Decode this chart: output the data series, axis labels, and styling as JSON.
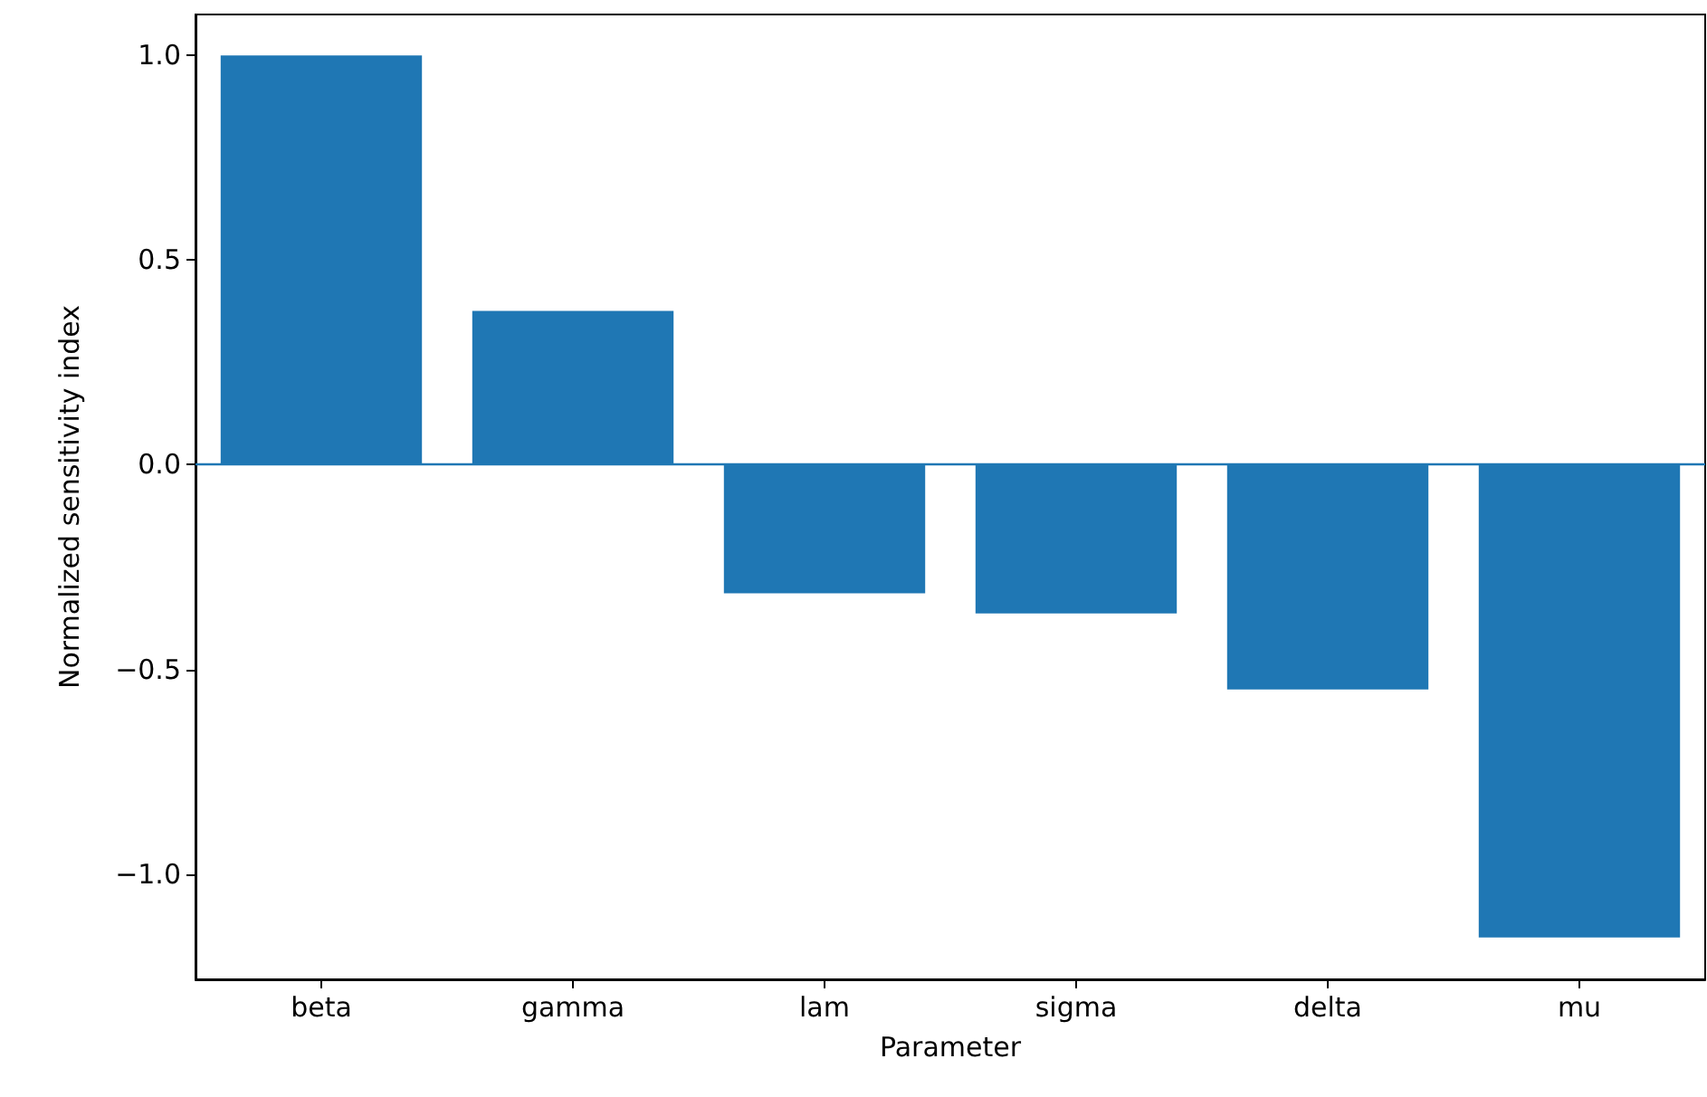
{
  "chart_data": {
    "type": "bar",
    "xlabel": "Parameter",
    "ylabel": "Normalized sensitivity index",
    "categories": [
      "beta",
      "gamma",
      "lam",
      "sigma",
      "delta",
      "mu"
    ],
    "values": [
      1.0,
      0.376,
      -0.314,
      -0.363,
      -0.549,
      -1.155
    ],
    "color": "#1f77b4",
    "ylim": [
      -1.257,
      1.1
    ],
    "yticks": [
      {
        "value": -1.0,
        "label": "−1.0"
      },
      {
        "value": -0.5,
        "label": "−0.5"
      },
      {
        "value": 0.0,
        "label": "0.0"
      },
      {
        "value": 0.5,
        "label": "0.5"
      },
      {
        "value": 1.0,
        "label": "1.0"
      }
    ],
    "ref_lines": [
      {
        "axis": "y",
        "value": 0,
        "color": "#1f77b4"
      }
    ],
    "grid": false
  }
}
